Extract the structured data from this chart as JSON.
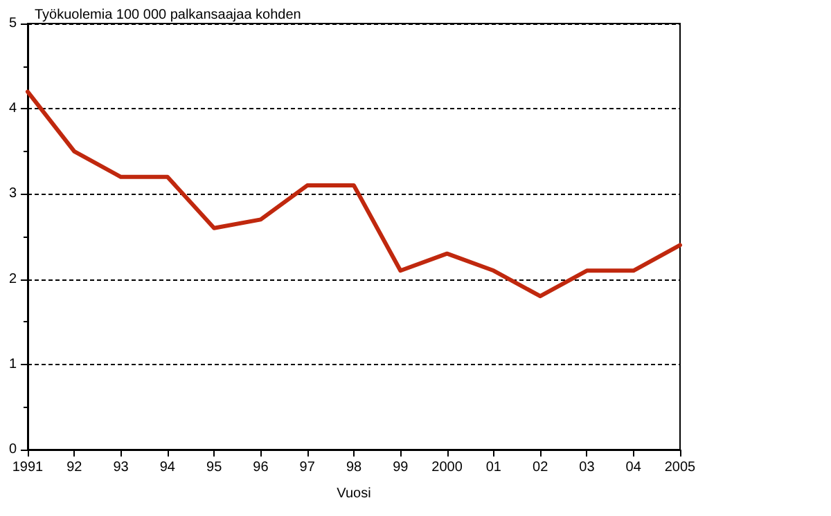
{
  "chart_data": {
    "type": "line",
    "ylabel": "Työkuolemia 100 000 palkansaajaa kohden",
    "xlabel": "Vuosi",
    "categories": [
      "1991",
      "92",
      "93",
      "94",
      "95",
      "96",
      "97",
      "98",
      "99",
      "2000",
      "01",
      "02",
      "03",
      "04",
      "2005"
    ],
    "series": [
      {
        "color": "#c0280e",
        "values": [
          4.2,
          3.5,
          3.2,
          3.2,
          2.6,
          2.7,
          3.1,
          3.1,
          2.1,
          2.3,
          2.1,
          1.8,
          2.1,
          2.1,
          2.4
        ]
      }
    ],
    "ylim": [
      0,
      5
    ],
    "yticks": [
      0,
      1,
      2,
      3,
      4,
      5
    ],
    "grid": "y",
    "marker": "none",
    "line_style": "solid"
  }
}
